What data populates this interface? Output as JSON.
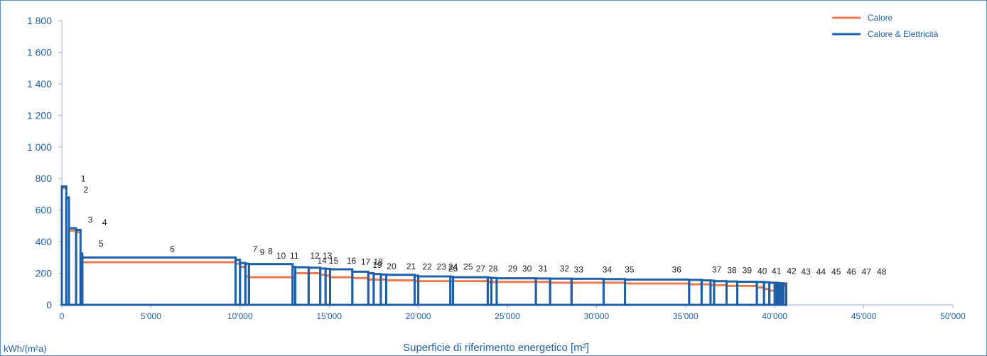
{
  "chart_data": {
    "type": "bar",
    "xlabel": "Superficie di riferimento energetico [m²]",
    "ylabel": "kWh/(m²a)",
    "xlim": [
      0,
      50000
    ],
    "ylim": [
      0,
      1800
    ],
    "x_ticks": [
      0,
      5000,
      10000,
      15000,
      20000,
      25000,
      30000,
      35000,
      40000,
      45000,
      50000
    ],
    "x_tick_labels": [
      "0",
      "5'000",
      "10'000",
      "15'000",
      "20'000",
      "25'000",
      "30'000",
      "35'000",
      "40'000",
      "45'000",
      "50'000"
    ],
    "y_ticks": [
      0,
      200,
      400,
      600,
      800,
      1000,
      1200,
      1400,
      1600,
      1800
    ],
    "y_tick_labels": [
      "0",
      "200",
      "400",
      "600",
      "800",
      "1 000",
      "1 200",
      "1 400",
      "1 600",
      "1 800"
    ],
    "grid": false,
    "legend_position": "top-right",
    "series": [
      {
        "name": "Calore",
        "color": "#f07a4f"
      },
      {
        "name": "Calore & Elettricità",
        "color": "#1f5fa8"
      }
    ],
    "bars": [
      {
        "label": "1",
        "x0": 0,
        "x1": 250,
        "heat": 740,
        "total": 750
      },
      {
        "label": "2",
        "x0": 250,
        "x1": 400,
        "heat": 670,
        "total": 680
      },
      {
        "label": "3",
        "x0": 400,
        "x1": 800,
        "heat": 470,
        "total": 485
      },
      {
        "label": "4",
        "x0": 800,
        "x1": 1050,
        "heat": 460,
        "total": 475
      },
      {
        "label": "5",
        "x0": 1050,
        "x1": 1150,
        "heat": 310,
        "total": 325
      },
      {
        "label": "6",
        "x0": 1150,
        "x1": 9750,
        "heat": 270,
        "total": 300
      },
      {
        "label": "7",
        "x0": 9750,
        "x1": 10000,
        "heat": 260,
        "total": 285
      },
      {
        "label": "8",
        "x0": 10000,
        "x1": 10300,
        "heat": 240,
        "total": 265
      },
      {
        "label": "9",
        "x0": 10300,
        "x1": 10500,
        "heat": 180,
        "total": 260
      },
      {
        "label": "10",
        "x0": 10500,
        "x1": 12950,
        "heat": 175,
        "total": 258
      },
      {
        "label": "11",
        "x0": 12950,
        "x1": 13100,
        "heat": 175,
        "total": 240
      },
      {
        "label": "12",
        "x0": 13100,
        "x1": 13850,
        "heat": 200,
        "total": 238
      },
      {
        "label": "13",
        "x0": 13850,
        "x1": 14500,
        "heat": 200,
        "total": 235
      },
      {
        "label": "14",
        "x0": 14500,
        "x1": 14800,
        "heat": 190,
        "total": 230
      },
      {
        "label": "15",
        "x0": 14800,
        "x1": 15050,
        "heat": 185,
        "total": 228
      },
      {
        "label": "16",
        "x0": 15050,
        "x1": 16300,
        "heat": 175,
        "total": 225
      },
      {
        "label": "17",
        "x0": 16300,
        "x1": 17200,
        "heat": 170,
        "total": 210
      },
      {
        "label": "18",
        "x0": 17200,
        "x1": 17500,
        "heat": 160,
        "total": 200
      },
      {
        "label": "19",
        "x0": 17500,
        "x1": 17900,
        "heat": 160,
        "total": 195
      },
      {
        "label": "20",
        "x0": 17900,
        "x1": 18200,
        "heat": 160,
        "total": 192
      },
      {
        "label": "21",
        "x0": 18200,
        "x1": 19800,
        "heat": 155,
        "total": 190
      },
      {
        "label": "22",
        "x0": 19800,
        "x1": 20000,
        "heat": 150,
        "total": 185
      },
      {
        "label": "23",
        "x0": 20000,
        "x1": 21800,
        "heat": 150,
        "total": 180
      },
      {
        "label": "24",
        "x0": 21800,
        "x1": 21950,
        "heat": 150,
        "total": 178
      },
      {
        "label": "25",
        "x0": 21950,
        "x1": 23900,
        "heat": 150,
        "total": 175
      },
      {
        "label": "26",
        "x0": 23900,
        "x1": 24100,
        "heat": 145,
        "total": 172
      },
      {
        "label": "27",
        "x0": 24100,
        "x1": 24400,
        "heat": 145,
        "total": 170
      },
      {
        "label": "28",
        "x0": 24400,
        "x1": 26600,
        "heat": 145,
        "total": 168
      },
      {
        "label": "29",
        "x0": 26600,
        "x1": 27400,
        "heat": 145,
        "total": 167
      },
      {
        "label": "30",
        "x0": 27400,
        "x1": 28600,
        "heat": 140,
        "total": 166
      },
      {
        "label": "31",
        "x0": 28600,
        "x1": 30400,
        "heat": 140,
        "total": 165
      },
      {
        "label": "32",
        "x0": 30400,
        "x1": 31600,
        "heat": 140,
        "total": 163
      },
      {
        "label": "33",
        "x0": 31600,
        "x1": 35200,
        "heat": 135,
        "total": 160
      },
      {
        "label": "34",
        "x0": 35200,
        "x1": 35900,
        "heat": 130,
        "total": 158
      },
      {
        "label": "35",
        "x0": 35900,
        "x1": 36400,
        "heat": 130,
        "total": 155
      },
      {
        "label": "36",
        "x0": 36400,
        "x1": 36600,
        "heat": 125,
        "total": 153
      },
      {
        "label": "37",
        "x0": 36600,
        "x1": 37300,
        "heat": 125,
        "total": 150
      },
      {
        "label": "38",
        "x0": 37300,
        "x1": 37900,
        "heat": 120,
        "total": 148
      },
      {
        "label": "39",
        "x0": 37900,
        "x1": 39000,
        "heat": 120,
        "total": 146
      },
      {
        "label": "40",
        "x0": 39000,
        "x1": 39400,
        "heat": 110,
        "total": 145
      },
      {
        "label": "41",
        "x0": 39400,
        "x1": 39700,
        "heat": 100,
        "total": 143
      },
      {
        "label": "42",
        "x0": 39700,
        "x1": 40000,
        "heat": 90,
        "total": 140
      },
      {
        "label": "43",
        "x0": 40000,
        "x1": 40100,
        "heat": 120,
        "total": 140
      },
      {
        "label": "44",
        "x0": 40100,
        "x1": 40200,
        "heat": 120,
        "total": 138
      },
      {
        "label": "45",
        "x0": 40200,
        "x1": 40300,
        "heat": 120,
        "total": 138
      },
      {
        "label": "46",
        "x0": 40300,
        "x1": 40400,
        "heat": 120,
        "total": 137
      },
      {
        "label": "47",
        "x0": 40400,
        "x1": 40500,
        "heat": 120,
        "total": 136
      },
      {
        "label": "48",
        "x0": 40500,
        "x1": 40650,
        "heat": 120,
        "total": 135
      }
    ],
    "annotations": [
      {
        "text": "1",
        "x": 1200,
        "y": 780
      },
      {
        "text": "2",
        "x": 1350,
        "y": 710
      },
      {
        "text": "3",
        "x": 1600,
        "y": 520
      },
      {
        "text": "4",
        "x": 2400,
        "y": 505
      },
      {
        "text": "5",
        "x": 2200,
        "y": 370
      },
      {
        "text": "6",
        "x": 6200,
        "y": 335
      },
      {
        "text": "7",
        "x": 10850,
        "y": 335
      },
      {
        "text": "9",
        "x": 11250,
        "y": 315
      },
      {
        "text": "8",
        "x": 11700,
        "y": 322
      },
      {
        "text": "10",
        "x": 12300,
        "y": 292
      },
      {
        "text": "11",
        "x": 13050,
        "y": 292
      },
      {
        "text": "12",
        "x": 14200,
        "y": 292
      },
      {
        "text": "13",
        "x": 14900,
        "y": 292
      },
      {
        "text": "14",
        "x": 14600,
        "y": 262
      },
      {
        "text": "15",
        "x": 15250,
        "y": 262
      },
      {
        "text": "16",
        "x": 16250,
        "y": 262
      },
      {
        "text": "17",
        "x": 17050,
        "y": 255
      },
      {
        "text": "18",
        "x": 17750,
        "y": 255
      },
      {
        "text": "19",
        "x": 17700,
        "y": 235
      },
      {
        "text": "20",
        "x": 18500,
        "y": 225
      },
      {
        "text": "21",
        "x": 19600,
        "y": 225
      },
      {
        "text": "22",
        "x": 20500,
        "y": 222
      },
      {
        "text": "23",
        "x": 21300,
        "y": 222
      },
      {
        "text": "24",
        "x": 21950,
        "y": 222
      },
      {
        "text": "25",
        "x": 22800,
        "y": 222
      },
      {
        "text": "26",
        "x": 21950,
        "y": 212
      },
      {
        "text": "27",
        "x": 23500,
        "y": 212
      },
      {
        "text": "28",
        "x": 24200,
        "y": 212
      },
      {
        "text": "29",
        "x": 25300,
        "y": 212
      },
      {
        "text": "30",
        "x": 26100,
        "y": 212
      },
      {
        "text": "31",
        "x": 27000,
        "y": 212
      },
      {
        "text": "32",
        "x": 28200,
        "y": 212
      },
      {
        "text": "33",
        "x": 29000,
        "y": 205
      },
      {
        "text": "34",
        "x": 30600,
        "y": 205
      },
      {
        "text": "35",
        "x": 31850,
        "y": 205
      },
      {
        "text": "36",
        "x": 34500,
        "y": 205
      },
      {
        "text": "37",
        "x": 36750,
        "y": 205
      },
      {
        "text": "38",
        "x": 37600,
        "y": 200
      },
      {
        "text": "39",
        "x": 38450,
        "y": 200
      },
      {
        "text": "40",
        "x": 39300,
        "y": 195
      },
      {
        "text": "41",
        "x": 40100,
        "y": 195
      },
      {
        "text": "42",
        "x": 40950,
        "y": 195
      },
      {
        "text": "43",
        "x": 41750,
        "y": 192
      },
      {
        "text": "44",
        "x": 42600,
        "y": 192
      },
      {
        "text": "45",
        "x": 43450,
        "y": 192
      },
      {
        "text": "46",
        "x": 44300,
        "y": 192
      },
      {
        "text": "47",
        "x": 45150,
        "y": 192
      },
      {
        "text": "48",
        "x": 46000,
        "y": 192
      }
    ]
  }
}
